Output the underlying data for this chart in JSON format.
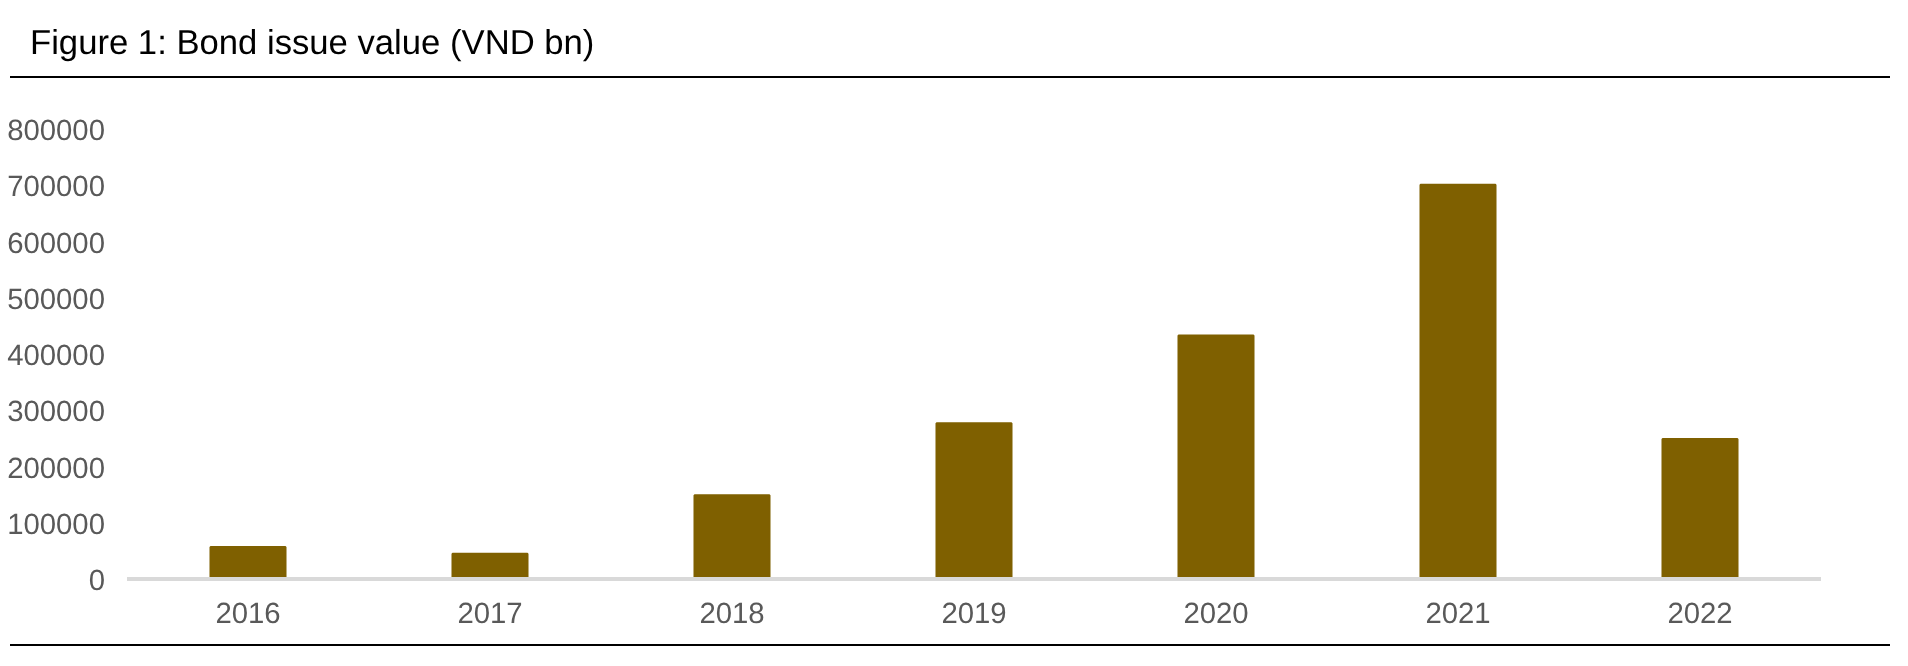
{
  "chart_data": {
    "type": "bar",
    "title": "Figure 1: Bond issue value (VND bn)",
    "categories": [
      "2016",
      "2017",
      "2018",
      "2019",
      "2020",
      "2021",
      "2022"
    ],
    "values": [
      57000,
      45000,
      149000,
      277000,
      433000,
      701000,
      249000
    ],
    "color": "#7f6000",
    "ylim": [
      0,
      800000
    ],
    "yticks": [
      0,
      100000,
      200000,
      300000,
      400000,
      500000,
      600000,
      700000,
      800000
    ],
    "grid": false
  }
}
